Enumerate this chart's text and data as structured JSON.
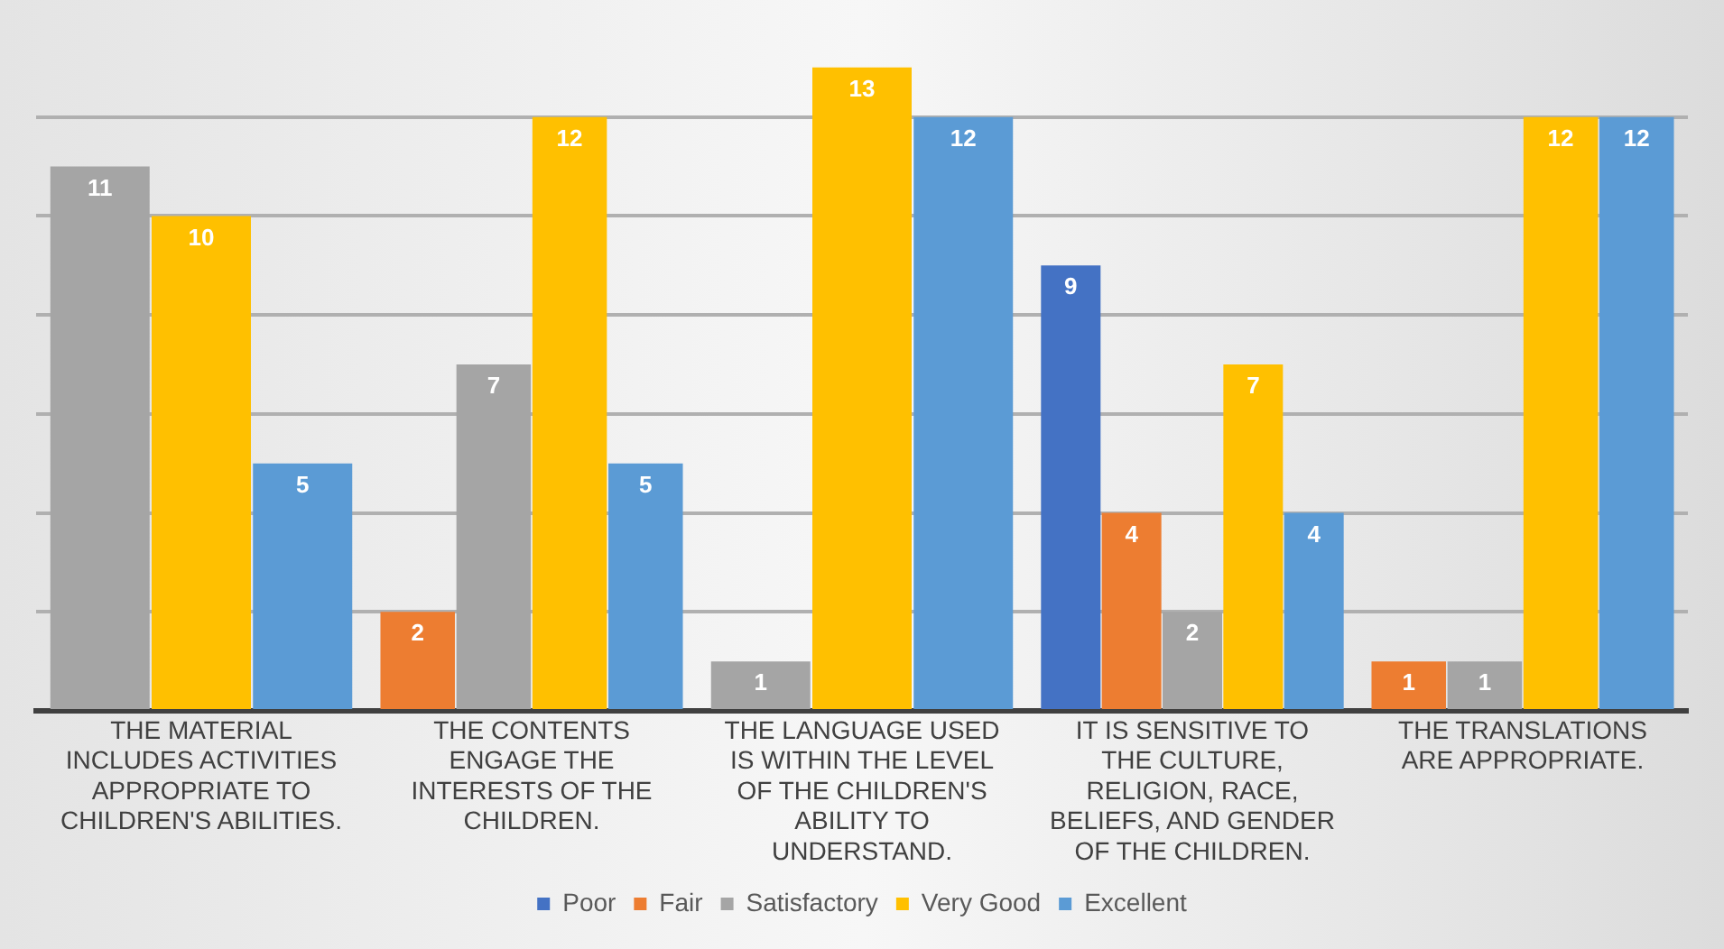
{
  "chart_data": {
    "type": "bar",
    "categories": [
      "THE MATERIAL INCLUDES ACTIVITIES APPROPRIATE TO CHILDREN'S ABILITIES.",
      "THE CONTENTS ENGAGE THE INTERESTS OF THE CHILDREN.",
      "THE LANGUAGE USED IS WITHIN THE LEVEL OF THE CHILDREN'S ABILITY TO UNDERSTAND.",
      "IT IS SENSITIVE TO THE CULTURE, RELIGION, RACE, BELIEFS, AND GENDER OF THE CHILDREN.",
      "THE TRANSLATIONS ARE APPROPRIATE."
    ],
    "series": [
      {
        "name": "Poor",
        "color": "#4472c4",
        "values": [
          null,
          null,
          null,
          9,
          null
        ]
      },
      {
        "name": "Fair",
        "color": "#ed7d31",
        "values": [
          null,
          2,
          null,
          4,
          1
        ]
      },
      {
        "name": "Satisfactory",
        "color": "#a5a5a5",
        "values": [
          11,
          7,
          1,
          2,
          1
        ]
      },
      {
        "name": "Very Good",
        "color": "#ffc000",
        "values": [
          10,
          12,
          13,
          7,
          12
        ]
      },
      {
        "name": "Excellent",
        "color": "#5b9bd5",
        "values": [
          5,
          5,
          12,
          4,
          12
        ]
      }
    ],
    "yticks": [
      {
        "value": 0,
        "label": null
      },
      {
        "value": 2,
        "label": null
      },
      {
        "value": 4,
        "label": null
      },
      {
        "value": 6,
        "label": null
      },
      {
        "value": 8,
        "label": null
      },
      {
        "value": 10,
        "label": null
      },
      {
        "value": 12,
        "label": null
      }
    ],
    "tick_labels": "x",
    "grid": "y",
    "legend": "bottom",
    "data_labels": true
  }
}
